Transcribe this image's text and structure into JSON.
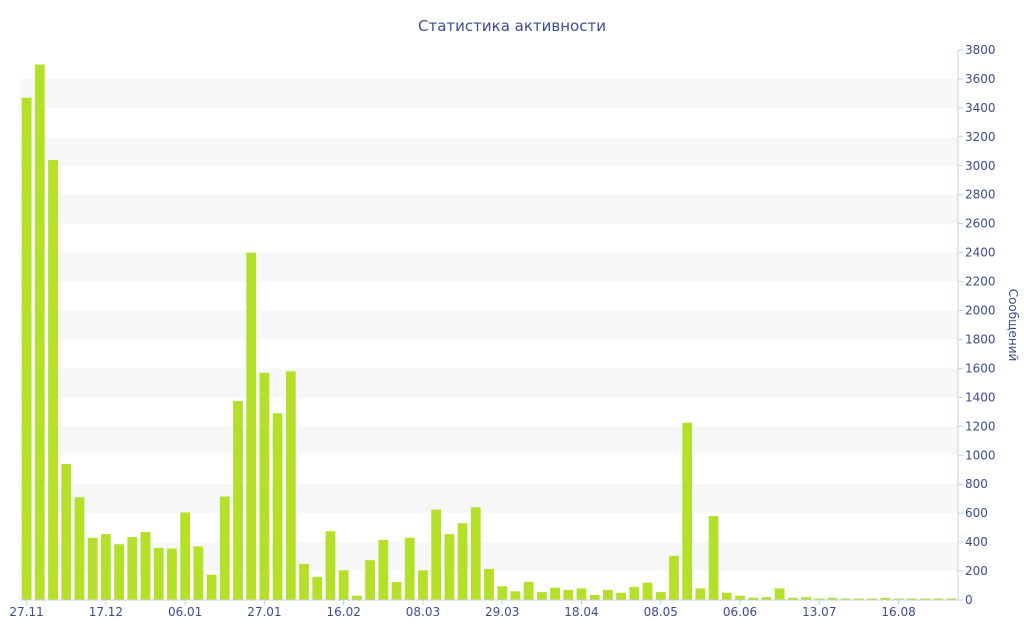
{
  "chart_data": {
    "type": "bar",
    "title": "Статистика активности",
    "xlabel": "",
    "ylabel": "Сообщений",
    "y_axis_side": "right",
    "ylim": [
      0,
      3800
    ],
    "yticks": [
      0,
      200,
      400,
      600,
      800,
      1000,
      1200,
      1400,
      1600,
      1800,
      2000,
      2200,
      2400,
      2600,
      2800,
      3000,
      3200,
      3400,
      3600,
      3800
    ],
    "grid": "alternating horizontal bands",
    "bar_color": "#b5e02a",
    "band_color": "#f7f7f7",
    "text_color": "#3d4c8f",
    "x_tick_labels": [
      {
        "index": 0,
        "label": "27.11"
      },
      {
        "index": 6,
        "label": "17.12"
      },
      {
        "index": 12,
        "label": "06.01"
      },
      {
        "index": 18,
        "label": "27.01"
      },
      {
        "index": 24,
        "label": "16.02"
      },
      {
        "index": 30,
        "label": "08.03"
      },
      {
        "index": 36,
        "label": "29.03"
      },
      {
        "index": 42,
        "label": "18.04"
      },
      {
        "index": 48,
        "label": "08.05"
      },
      {
        "index": 54,
        "label": "06.06"
      },
      {
        "index": 60,
        "label": "13.07"
      },
      {
        "index": 66,
        "label": "16.08"
      }
    ],
    "values": [
      3470,
      3700,
      3040,
      940,
      710,
      430,
      455,
      385,
      435,
      470,
      360,
      355,
      605,
      370,
      175,
      715,
      1375,
      2400,
      1570,
      1290,
      1580,
      250,
      160,
      475,
      205,
      30,
      275,
      415,
      125,
      430,
      205,
      625,
      455,
      530,
      640,
      215,
      95,
      60,
      125,
      55,
      85,
      70,
      80,
      35,
      70,
      50,
      90,
      120,
      55,
      305,
      1225,
      80,
      580,
      50,
      30,
      15,
      20,
      80,
      15,
      20,
      10,
      15,
      10,
      10,
      10,
      15,
      10,
      10,
      10,
      10,
      10
    ]
  }
}
